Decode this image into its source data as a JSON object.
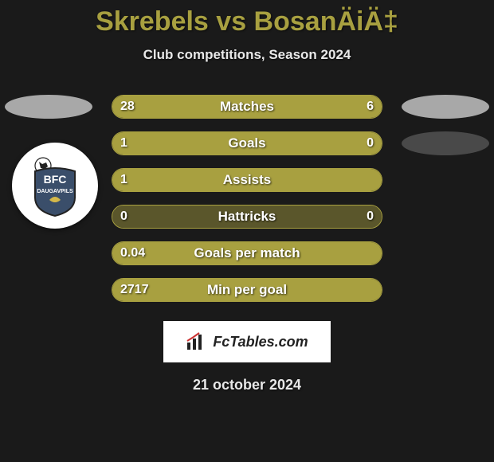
{
  "title": "Skrebels vs BosanÄiÄ‡",
  "subtitle": "Club competitions, Season 2024",
  "date": "21 october 2024",
  "colors": {
    "bar_fill": "#a8a040",
    "bar_border": "#a8a040",
    "title_color": "#a8a040",
    "bg": "#1a1a1a",
    "ellipse_light": "#d8d8d8",
    "ellipse_dark": "#5a5a5a"
  },
  "club_badge": {
    "text_top": "BFC",
    "text_bottom": "DAUGAVPILS",
    "shield_fill": "#3a4e6a",
    "shield_stroke": "#222"
  },
  "fctables_label": "FcTables.com",
  "rows": [
    {
      "label": "Matches",
      "left_value": "28",
      "right_value": "6",
      "left_pct": 82,
      "right_pct": 18,
      "left_ellipse": "#d8d8d8",
      "right_ellipse": "#d8d8d8"
    },
    {
      "label": "Goals",
      "left_value": "1",
      "right_value": "0",
      "left_pct": 100,
      "right_pct": 0,
      "left_ellipse": null,
      "right_ellipse": "#5a5a5a"
    },
    {
      "label": "Assists",
      "left_value": "1",
      "right_value": "",
      "left_pct": 100,
      "right_pct": 0,
      "left_ellipse": null,
      "right_ellipse": null
    },
    {
      "label": "Hattricks",
      "left_value": "0",
      "right_value": "0",
      "left_pct": 50,
      "right_pct": 50,
      "left_ellipse": null,
      "right_ellipse": null
    },
    {
      "label": "Goals per match",
      "left_value": "0.04",
      "right_value": "",
      "left_pct": 100,
      "right_pct": 0,
      "left_ellipse": null,
      "right_ellipse": null
    },
    {
      "label": "Min per goal",
      "left_value": "2717",
      "right_value": "",
      "left_pct": 100,
      "right_pct": 0,
      "left_ellipse": null,
      "right_ellipse": null
    }
  ]
}
